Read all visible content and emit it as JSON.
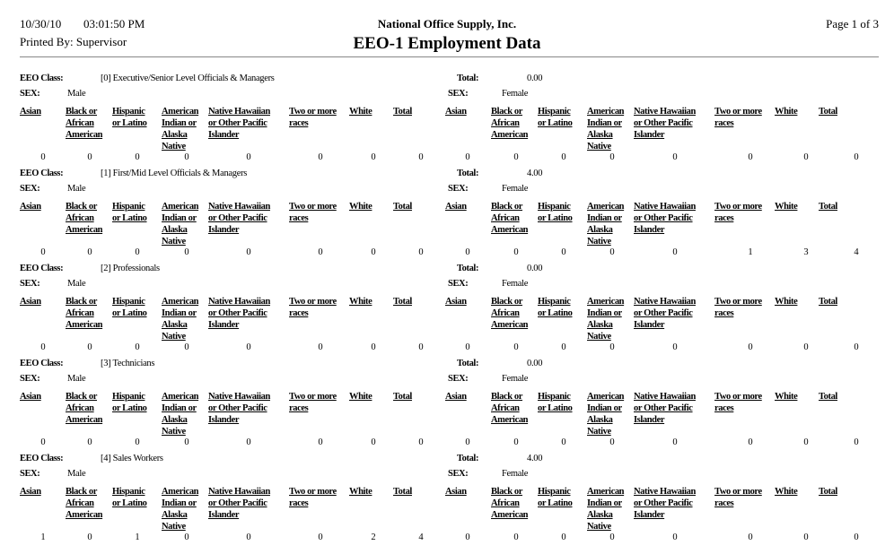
{
  "header": {
    "date": "10/30/10",
    "time": "03:01:50 PM",
    "printed_by": "Printed By: Supervisor",
    "company": "National Office Supply, Inc.",
    "title": "EEO-1 Employment Data",
    "page": "Page 1 of 3"
  },
  "labels": {
    "eeo_class": "EEO Class:",
    "total": "Total:",
    "sex": "SEX:",
    "male": "Male",
    "female": "Female"
  },
  "columns": [
    [
      "Asian"
    ],
    [
      "Black or",
      "African",
      "American"
    ],
    [
      "Hispanic",
      "or Latino"
    ],
    [
      "American",
      "Indian or",
      "Alaska",
      "Native"
    ],
    [
      "Native Hawaiian",
      "or Other Pacific",
      "Islander"
    ],
    [
      "Two or more",
      "races"
    ],
    [
      "White"
    ],
    [
      "Total"
    ]
  ],
  "sections": [
    {
      "eeo_class": "[0] Executive/Senior Level Officials & Managers",
      "total": "0.00",
      "male": [
        0,
        0,
        0,
        0,
        0,
        0,
        0,
        0
      ],
      "female": [
        0,
        0,
        0,
        0,
        0,
        0,
        0,
        0
      ]
    },
    {
      "eeo_class": "[1] First/Mid Level Officials & Managers",
      "total": "4.00",
      "male": [
        0,
        0,
        0,
        0,
        0,
        0,
        0,
        0
      ],
      "female": [
        0,
        0,
        0,
        0,
        0,
        1,
        3,
        4
      ]
    },
    {
      "eeo_class": "[2] Professionals",
      "total": "0.00",
      "male": [
        0,
        0,
        0,
        0,
        0,
        0,
        0,
        0
      ],
      "female": [
        0,
        0,
        0,
        0,
        0,
        0,
        0,
        0
      ]
    },
    {
      "eeo_class": "[3] Technicians",
      "total": "0.00",
      "male": [
        0,
        0,
        0,
        0,
        0,
        0,
        0,
        0
      ],
      "female": [
        0,
        0,
        0,
        0,
        0,
        0,
        0,
        0
      ]
    },
    {
      "eeo_class": "[4] Sales Workers",
      "total": "4.00",
      "male": [
        1,
        0,
        1,
        0,
        0,
        0,
        2,
        4
      ],
      "female": [
        0,
        0,
        0,
        0,
        0,
        0,
        0,
        0
      ]
    }
  ]
}
